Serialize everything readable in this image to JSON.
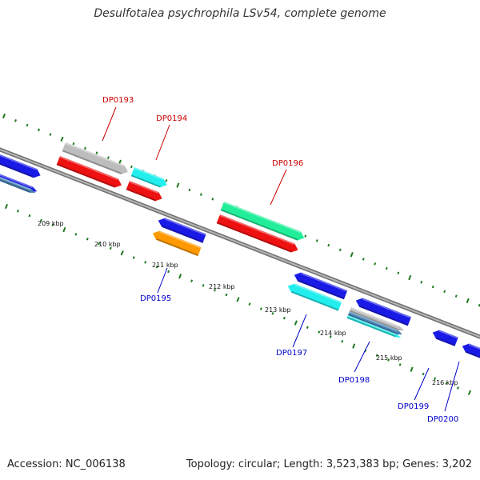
{
  "header": {
    "title": "Desulfotalea psychrophila LSv54, complete genome"
  },
  "footer": {
    "accession": "Accession: NC_006138",
    "summary": "Topology: circular; Length: 3,523,383 bp; Genes: 3,202"
  },
  "colors": {
    "backbone": "#8c8c8c",
    "tick": "#1e7a1e",
    "label_forward": "#cc0000",
    "label_reverse": "#0000cc",
    "blue": "#1a1ae6",
    "red": "#ee1111",
    "cyan": "#22eeee",
    "green": "#22ee99",
    "grey": "#bdbdbd",
    "orange": "#ff9900",
    "steel": "#4682b4"
  },
  "scale": {
    "ticks": [
      "209 kbp",
      "210 kbp",
      "211 kbp",
      "212 kbp",
      "213 kbp",
      "214 kbp",
      "215 kbp",
      "216 kbp"
    ]
  },
  "genes": [
    {
      "label": "DP0193",
      "strand": "forward",
      "color": "grey"
    },
    {
      "label": "DP0194",
      "strand": "forward",
      "color": "cyan"
    },
    {
      "label": "DP0196",
      "strand": "forward",
      "color": "green"
    },
    {
      "label": "DP0195",
      "strand": "reverse",
      "color": "orange"
    },
    {
      "label": "DP0197",
      "strand": "reverse",
      "color": "cyan"
    },
    {
      "label": "DP0198",
      "strand": "reverse",
      "color": "steel"
    },
    {
      "label": "DP0199",
      "strand": "reverse",
      "color": "blue"
    },
    {
      "label": "DP0200",
      "strand": "reverse",
      "color": "blue"
    }
  ]
}
